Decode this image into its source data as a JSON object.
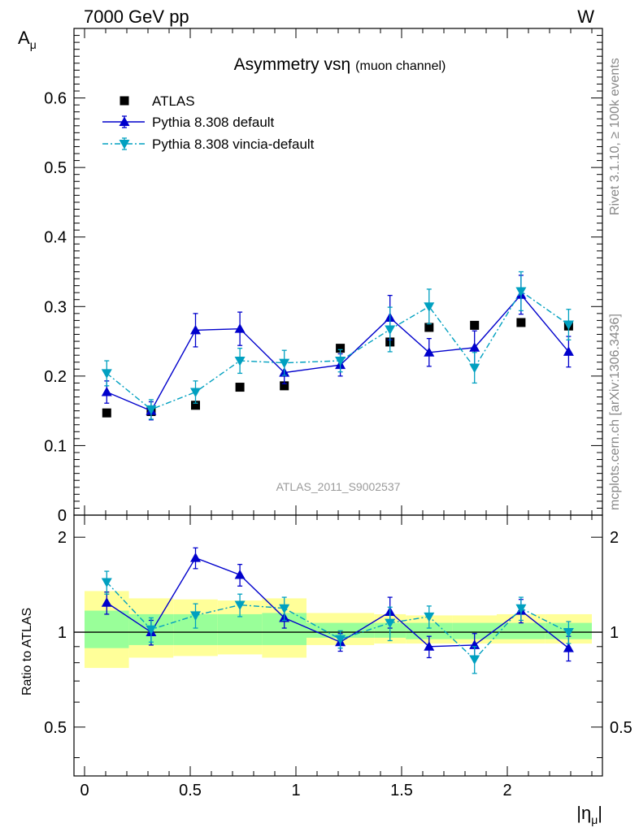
{
  "header": {
    "left": "7000 GeV pp",
    "right": "W"
  },
  "side_labels": {
    "rivet": "Rivet 3.1.10, ≥ 100k events",
    "mcplots": "mcplots.cern.ch [arXiv:1306.3436]"
  },
  "chart_data": {
    "type": "scatter",
    "title": "Asymmetry vs",
    "title_symbol": "η",
    "title_suffix": "(muon channel)",
    "watermark": "ATLAS_2011_S9002537",
    "ylabel_main": "A",
    "ylabel_main_sub": "μ",
    "ylabel_ratio": "Ratio to ATLAS",
    "xlabel": "|η",
    "xlabel_sub": "μ",
    "xlabel_close": "|",
    "xlim": [
      -0.05,
      2.45
    ],
    "ylim_main": [
      0,
      0.7
    ],
    "ylim_ratio": [
      0.35,
      2.35
    ],
    "x_ticks": [
      0,
      0.5,
      1,
      1.5,
      2
    ],
    "x_tick_labels": [
      "0",
      "0.5",
      "1",
      "1.5",
      "2"
    ],
    "y_ticks_main": [
      0.1,
      0.2,
      0.3,
      0.4,
      0.5,
      0.6
    ],
    "y_tick_labels_main": [
      "0.1",
      "0.2",
      "0.3",
      "0.4",
      "0.5",
      "0.6"
    ],
    "y_zero_label": "0",
    "y_ticks_ratio": [
      0.5,
      1,
      2
    ],
    "y_tick_labels_ratio": [
      "0.5",
      "1",
      "2"
    ],
    "bins": [
      [
        0.0,
        0.21
      ],
      [
        0.21,
        0.42
      ],
      [
        0.42,
        0.63
      ],
      [
        0.63,
        0.84
      ],
      [
        0.84,
        1.05
      ],
      [
        1.05,
        1.37
      ],
      [
        1.37,
        1.52
      ],
      [
        1.52,
        1.74
      ],
      [
        1.74,
        1.95
      ],
      [
        1.95,
        2.18
      ],
      [
        2.18,
        2.4
      ]
    ],
    "x": [
      0.105,
      0.315,
      0.525,
      0.735,
      0.945,
      1.21,
      1.445,
      1.63,
      1.845,
      2.065,
      2.29
    ],
    "series": [
      {
        "name": "ATLAS",
        "values": [
          0.147,
          0.149,
          0.158,
          0.184,
          0.186,
          0.24,
          0.249,
          0.27,
          0.273,
          0.277,
          0.272
        ],
        "color": "#000000"
      },
      {
        "name": "Pythia 8.308 default",
        "values": [
          0.177,
          0.15,
          0.266,
          0.268,
          0.205,
          0.216,
          0.284,
          0.234,
          0.241,
          0.317,
          0.235
        ],
        "errors": [
          0.016,
          0.013,
          0.024,
          0.024,
          0.016,
          0.016,
          0.032,
          0.02,
          0.024,
          0.028,
          0.022
        ],
        "ratio": [
          1.24,
          1.0,
          1.72,
          1.52,
          1.11,
          0.93,
          1.16,
          0.9,
          0.91,
          1.17,
          0.89
        ],
        "ratio_errors": [
          0.1,
          0.09,
          0.13,
          0.12,
          0.08,
          0.06,
          0.13,
          0.07,
          0.08,
          0.1,
          0.08
        ],
        "color": "#0000cc"
      },
      {
        "name": "Pythia 8.308 vincia-default",
        "values": [
          0.204,
          0.152,
          0.177,
          0.222,
          0.219,
          0.222,
          0.267,
          0.3,
          0.212,
          0.322,
          0.274
        ],
        "errors": [
          0.018,
          0.014,
          0.016,
          0.018,
          0.018,
          0.016,
          0.032,
          0.025,
          0.022,
          0.028,
          0.022
        ],
        "ratio": [
          1.44,
          1.02,
          1.13,
          1.22,
          1.19,
          0.95,
          1.07,
          1.12,
          0.82,
          1.19,
          1.0
        ],
        "ratio_errors": [
          0.12,
          0.09,
          0.1,
          0.1,
          0.1,
          0.06,
          0.13,
          0.09,
          0.08,
          0.1,
          0.08
        ],
        "color": "#00a0c0"
      }
    ],
    "ratio_band_yellow": [
      [
        0.77,
        1.35
      ],
      [
        0.83,
        1.28
      ],
      [
        0.84,
        1.27
      ],
      [
        0.85,
        1.26
      ],
      [
        0.83,
        1.28
      ],
      [
        0.91,
        1.15
      ],
      [
        0.92,
        1.14
      ],
      [
        0.92,
        1.13
      ],
      [
        0.92,
        1.13
      ],
      [
        0.92,
        1.14
      ],
      [
        0.92,
        1.14
      ]
    ],
    "ratio_band_green": [
      [
        0.89,
        1.17
      ],
      [
        0.91,
        1.14
      ],
      [
        0.91,
        1.14
      ],
      [
        0.91,
        1.14
      ],
      [
        0.91,
        1.15
      ],
      [
        0.96,
        1.07
      ],
      [
        0.96,
        1.07
      ],
      [
        0.95,
        1.07
      ],
      [
        0.95,
        1.07
      ],
      [
        0.95,
        1.07
      ],
      [
        0.95,
        1.07
      ]
    ],
    "band_colors": {
      "yellow": "#ffff99",
      "green": "#99ff99"
    },
    "legend_position": "top-left",
    "grid": false
  }
}
